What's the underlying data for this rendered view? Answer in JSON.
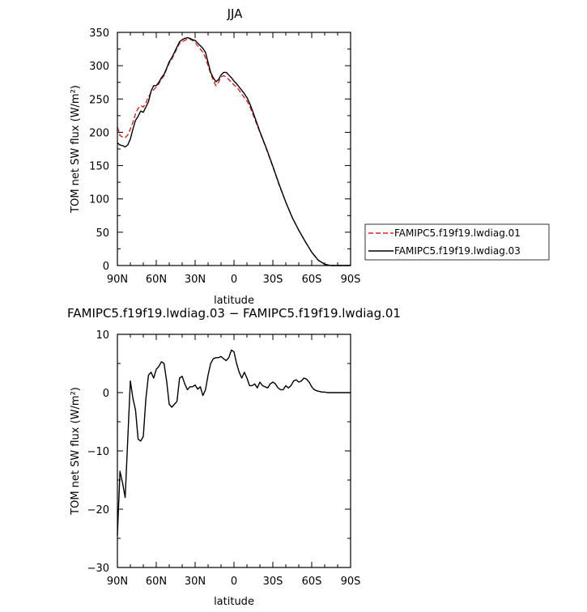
{
  "chart_data": [
    {
      "type": "line",
      "title": "JJA",
      "xlabel": "latitude",
      "ylabel": "TOM net SW flux (W/m²)",
      "xlim": [
        90,
        -90
      ],
      "ylim": [
        0,
        350
      ],
      "xticks": [
        90,
        60,
        30,
        0,
        -30,
        -60,
        -90
      ],
      "xtick_labels": [
        "90N",
        "60N",
        "30N",
        "0",
        "30S",
        "60S",
        "90S"
      ],
      "yticks": [
        0,
        50,
        100,
        150,
        200,
        250,
        300,
        350
      ],
      "ytick_labels": [
        "0",
        "50",
        "100",
        "150",
        "200",
        "250",
        "300",
        "350"
      ],
      "grid": false,
      "legend_position": "right",
      "series": [
        {
          "name": "FAMIPC5.f19f19.lwdiag.01",
          "color": "#e02020",
          "dash": "dashed",
          "x": [
            90,
            88,
            86,
            84,
            82,
            80,
            78,
            76,
            74,
            72,
            70,
            68,
            66,
            64,
            62,
            60,
            58,
            56,
            54,
            52,
            50,
            48,
            46,
            44,
            42,
            40,
            38,
            36,
            34,
            32,
            30,
            28,
            26,
            24,
            22,
            20,
            18,
            16,
            14,
            12,
            10,
            8,
            6,
            4,
            2,
            0,
            -2,
            -4,
            -6,
            -8,
            -10,
            -12,
            -14,
            -16,
            -18,
            -20,
            -25,
            -30,
            -35,
            -40,
            -45,
            -50,
            -55,
            -60,
            -65,
            -70,
            -75,
            -80,
            -85,
            -90
          ],
          "values": [
            208,
            195,
            193,
            192,
            196,
            205,
            215,
            228,
            236,
            240,
            238,
            244,
            253,
            260,
            264,
            268,
            273,
            280,
            285,
            295,
            304,
            310,
            318,
            326,
            334,
            336,
            338,
            340,
            340,
            338,
            335,
            330,
            325,
            320,
            312,
            300,
            288,
            278,
            270,
            275,
            283,
            285,
            283,
            279,
            275,
            271,
            268,
            263,
            257,
            252,
            247,
            240,
            230,
            220,
            210,
            200,
            175,
            148,
            120,
            95,
            72,
            53,
            36,
            20,
            8,
            2,
            0,
            0,
            0,
            0
          ]
        },
        {
          "name": "FAMIPC5.f19f19.lwdiag.03",
          "color": "#000000",
          "dash": "solid",
          "x": [
            90,
            88,
            86,
            84,
            82,
            80,
            78,
            76,
            74,
            72,
            70,
            68,
            66,
            64,
            62,
            60,
            58,
            56,
            54,
            52,
            50,
            48,
            46,
            44,
            42,
            40,
            38,
            36,
            34,
            32,
            30,
            28,
            26,
            24,
            22,
            20,
            18,
            16,
            14,
            12,
            10,
            8,
            6,
            4,
            2,
            0,
            -2,
            -4,
            -6,
            -8,
            -10,
            -12,
            -14,
            -16,
            -18,
            -20,
            -25,
            -30,
            -35,
            -40,
            -45,
            -50,
            -55,
            -60,
            -65,
            -70,
            -75,
            -80,
            -85,
            -90
          ],
          "values": [
            184,
            181,
            180,
            178,
            181,
            190,
            205,
            218,
            224,
            232,
            230,
            238,
            246,
            262,
            270,
            270,
            275,
            282,
            287,
            296,
            306,
            312,
            320,
            328,
            336,
            339,
            341,
            342,
            341,
            339,
            338,
            334,
            330,
            326,
            320,
            305,
            290,
            282,
            276,
            279,
            286,
            290,
            290,
            286,
            282,
            277,
            273,
            268,
            263,
            258,
            252,
            244,
            234,
            223,
            212,
            201,
            176,
            149,
            121,
            95,
            72,
            53,
            36,
            20,
            8,
            2,
            0,
            0,
            0,
            0
          ]
        }
      ]
    },
    {
      "type": "line",
      "title": "FAMIPC5.f19f19.lwdiag.03 − FAMIPC5.f19f19.lwdiag.01",
      "xlabel": "latitude",
      "ylabel": "TOM net SW flux (W/m²)",
      "xlim": [
        90,
        -90
      ],
      "ylim": [
        -30,
        10
      ],
      "xticks": [
        90,
        60,
        30,
        0,
        -30,
        -60,
        -90
      ],
      "xtick_labels": [
        "90N",
        "60N",
        "30N",
        "0",
        "30S",
        "60S",
        "90S"
      ],
      "yticks": [
        -30,
        -20,
        -10,
        0,
        10
      ],
      "ytick_labels": [
        "−30",
        "−20",
        "−10",
        "0",
        "10"
      ],
      "grid": false,
      "series": [
        {
          "color": "#000000",
          "dash": "solid",
          "x": [
            90,
            88,
            86,
            84,
            82,
            80,
            78,
            76,
            74,
            72,
            70,
            68,
            66,
            64,
            62,
            60,
            58,
            56,
            54,
            52,
            50,
            48,
            46,
            44,
            42,
            40,
            38,
            36,
            34,
            32,
            30,
            28,
            26,
            24,
            22,
            20,
            18,
            16,
            14,
            12,
            10,
            8,
            6,
            4,
            2,
            0,
            -2,
            -4,
            -6,
            -8,
            -10,
            -12,
            -14,
            -16,
            -18,
            -20,
            -22,
            -24,
            -26,
            -28,
            -30,
            -32,
            -34,
            -36,
            -38,
            -40,
            -42,
            -44,
            -46,
            -48,
            -50,
            -52,
            -54,
            -56,
            -58,
            -60,
            -62,
            -64,
            -66,
            -68,
            -70,
            -72,
            -75,
            -80,
            -85,
            -90
          ],
          "values": [
            -24.5,
            -13.5,
            -15.5,
            -18,
            -8,
            2,
            -1,
            -3,
            -8,
            -8.3,
            -7.5,
            -1,
            3,
            3.5,
            2.5,
            4,
            4.5,
            5.3,
            5,
            2,
            -2,
            -2.5,
            -2,
            -1.5,
            2.5,
            2.8,
            1.5,
            0.5,
            1,
            1,
            1.3,
            0.6,
            1,
            -0.5,
            0.5,
            3,
            5,
            5.8,
            6,
            6,
            6.2,
            5.8,
            5.5,
            6,
            7.3,
            7,
            5,
            3.5,
            2.5,
            3.5,
            2.5,
            1.2,
            1.2,
            1.5,
            0.8,
            1.8,
            1.2,
            1,
            0.8,
            1.5,
            1.8,
            1.5,
            0.8,
            0.5,
            0.5,
            1.2,
            0.8,
            1.2,
            2,
            2.2,
            1.8,
            2,
            2.5,
            2.3,
            1.8,
            1,
            0.5,
            0.3,
            0.2,
            0.1,
            0.1,
            0,
            0,
            0,
            0,
            0
          ]
        }
      ]
    }
  ]
}
